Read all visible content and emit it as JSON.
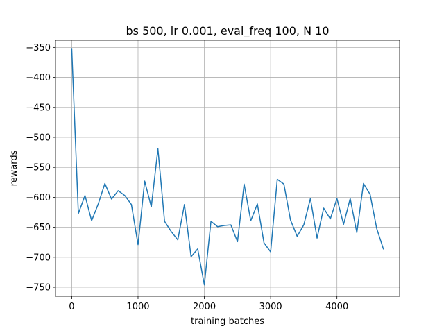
{
  "chart_data": {
    "type": "line",
    "title": "bs 500, lr 0.001, eval_freq 100, N 10",
    "xlabel": "training batches",
    "ylabel": "rewards",
    "xlim": [
      -245,
      4945
    ],
    "ylim": [
      -765,
      -338
    ],
    "grid": true,
    "x_ticks": [
      0,
      1000,
      2000,
      3000,
      4000
    ],
    "x_tick_labels": [
      "0",
      "1000",
      "2000",
      "3000",
      "4000"
    ],
    "y_ticks": [
      -350,
      -400,
      -450,
      -500,
      -550,
      -600,
      -650,
      -700,
      -750
    ],
    "y_tick_labels": [
      "−350",
      "−400",
      "−450",
      "−500",
      "−550",
      "−600",
      "−650",
      "−700",
      "−750"
    ],
    "series": [
      {
        "color": "#1f77b4",
        "x": [
          0,
          100,
          200,
          300,
          400,
          500,
          600,
          700,
          800,
          900,
          1000,
          1100,
          1200,
          1300,
          1400,
          1500,
          1600,
          1700,
          1800,
          1900,
          2000,
          2100,
          2200,
          2300,
          2400,
          2500,
          2600,
          2700,
          2800,
          2900,
          3000,
          3100,
          3200,
          3300,
          3400,
          3500,
          3600,
          3700,
          3800,
          3900,
          4000,
          4100,
          4200,
          4300,
          4400,
          4500,
          4600,
          4700
        ],
        "y": [
          -352,
          -627,
          -597,
          -639,
          -611,
          -577,
          -603,
          -589,
          -597,
          -612,
          -679,
          -573,
          -616,
          -519,
          -640,
          -657,
          -671,
          -612,
          -699,
          -686,
          -746,
          -640,
          -649,
          -647,
          -646,
          -674,
          -578,
          -639,
          -611,
          -676,
          -691,
          -570,
          -578,
          -638,
          -665,
          -646,
          -602,
          -668,
          -618,
          -636,
          -602,
          -645,
          -602,
          -659,
          -577,
          -595,
          -652,
          -686
        ]
      }
    ]
  }
}
